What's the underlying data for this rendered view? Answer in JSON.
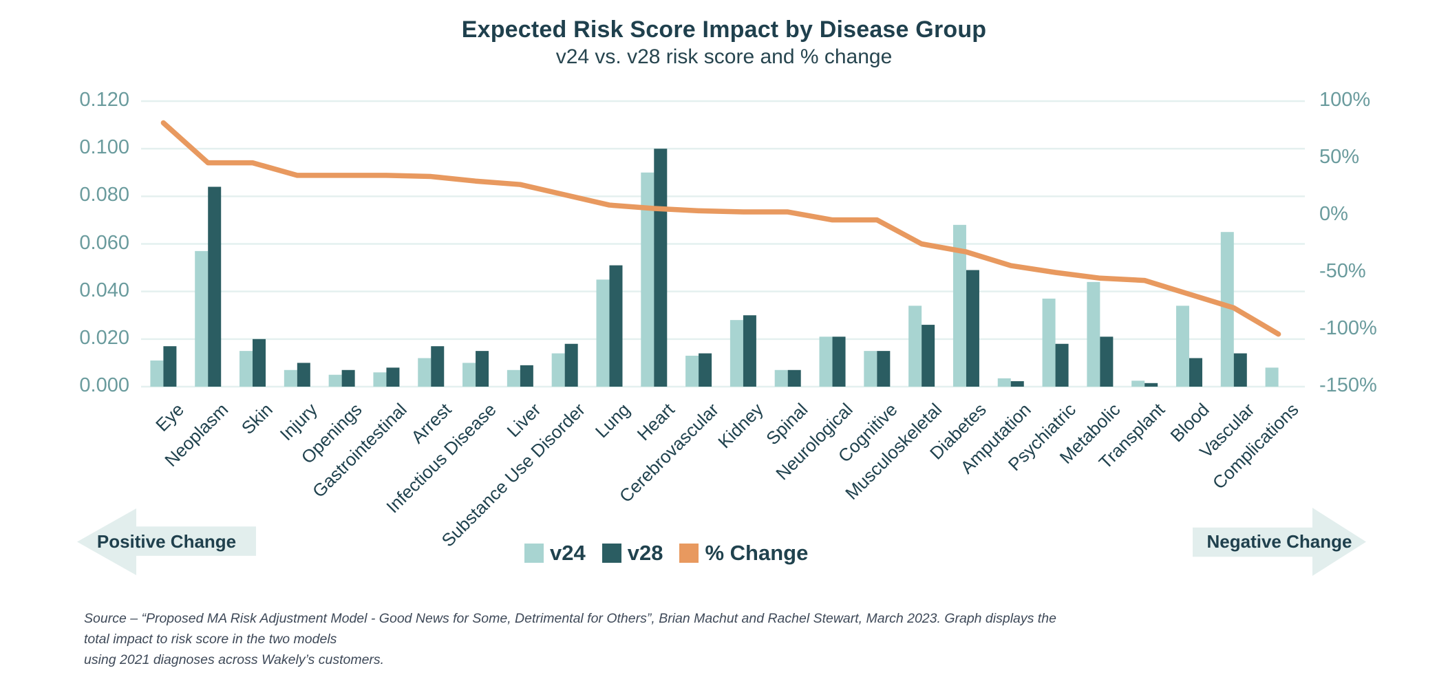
{
  "title": "Expected Risk Score Impact by Disease Group",
  "subtitle": "v24 vs. v28 risk score and % change",
  "left_axis": {
    "labels": [
      "0.120",
      "0.100",
      "0.080",
      "0.060",
      "0.040",
      "0.020",
      "0.000"
    ]
  },
  "right_axis": {
    "labels": [
      "100%",
      "50%",
      "0%",
      "-50%",
      "-100%",
      "-150%"
    ]
  },
  "legend": [
    {
      "label": "v24",
      "color": "#a8d4d1"
    },
    {
      "label": "v28",
      "color": "#2b5d62"
    },
    {
      "label": "% Change",
      "color": "#e8995f"
    }
  ],
  "arrows": {
    "left": "Positive Change",
    "right": "Negative Change"
  },
  "source_line1": "Source – “Proposed MA Risk Adjustment Model - Good News for Some, Detrimental for Others”, Brian Machut and Rachel Stewart, March 2023.  Graph displays the total impact to risk score in the two models",
  "source_line2": "using 2021 diagnoses across Wakely’s customers.",
  "chart_data": {
    "type": "bar",
    "combo": "grouped bars (left axis) + line (right axis)",
    "title": "Expected Risk Score Impact by Disease Group",
    "subtitle": "v24 vs. v28 risk score and % change",
    "categories": [
      "Eye",
      "Neoplasm",
      "Skin",
      "Injury",
      "Openings",
      "Gastrointestinal",
      "Arrest",
      "Infectious Disease",
      "Liver",
      "Substance Use Disorder",
      "Lung",
      "Heart",
      "Cerebrovascular",
      "Kidney",
      "Spinal",
      "Neurological",
      "Cognitive",
      "Musculoskeletal",
      "Diabetes",
      "Amputation",
      "Psychiatric",
      "Metabolic",
      "Transplant",
      "Blood",
      "Vascular",
      "Complications"
    ],
    "series": [
      {
        "name": "v24",
        "type": "bar",
        "axis": "left",
        "color": "#a8d4d1",
        "values": [
          0.011,
          0.057,
          0.015,
          0.007,
          0.005,
          0.006,
          0.012,
          0.01,
          0.007,
          0.014,
          0.045,
          0.09,
          0.013,
          0.028,
          0.007,
          0.021,
          0.015,
          0.034,
          0.068,
          0.0035,
          0.037,
          0.044,
          0.0025,
          0.034,
          0.065,
          0.008
        ]
      },
      {
        "name": "v28",
        "type": "bar",
        "axis": "left",
        "color": "#2b5d62",
        "values": [
          0.017,
          0.084,
          0.02,
          0.01,
          0.007,
          0.008,
          0.017,
          0.015,
          0.009,
          0.018,
          0.051,
          0.1,
          0.014,
          0.03,
          0.007,
          0.021,
          0.015,
          0.026,
          0.049,
          0.0023,
          0.018,
          0.021,
          0.0015,
          0.012,
          0.014,
          0
        ]
      },
      {
        "name": "% Change",
        "type": "line",
        "axis": "right",
        "color": "#e8995f",
        "values": [
          81,
          46,
          46,
          35,
          35,
          35,
          34,
          30,
          27,
          18,
          9,
          6,
          4,
          3,
          3,
          -4,
          -4,
          -25,
          -32,
          -44,
          -50,
          -55,
          -57,
          -69,
          -81,
          -104
        ]
      }
    ],
    "left_axis": {
      "min": 0,
      "max": 0.12,
      "step": 0.02
    },
    "right_axis": {
      "min": -150,
      "max": 100,
      "step": 50,
      "unit": "%"
    },
    "grid": true,
    "legend_position": "bottom-center",
    "annotations": {
      "left_arrow": "Positive Change",
      "right_arrow": "Negative Change"
    }
  }
}
